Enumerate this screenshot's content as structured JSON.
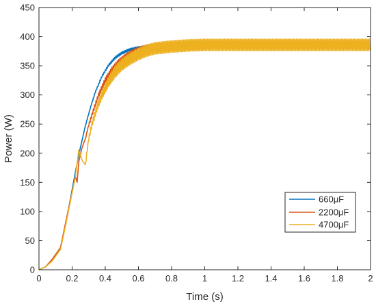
{
  "chart_data": {
    "type": "line",
    "title": "",
    "xlabel": "Time (s)",
    "ylabel": "Power (W)",
    "xlim": [
      0,
      2
    ],
    "ylim": [
      0,
      450
    ],
    "xticks": [
      "0",
      "0.2",
      "0.4",
      "0.6",
      "0.8",
      "1",
      "1.2",
      "1.4",
      "1.6",
      "1.8",
      "2"
    ],
    "yticks": [
      "0",
      "50",
      "100",
      "150",
      "200",
      "250",
      "300",
      "350",
      "400",
      "450"
    ],
    "grid": false,
    "legend_position": "right",
    "series": [
      {
        "name": "660μF",
        "color": "#0072BD",
        "ripple": 2,
        "x": [
          0,
          0.04,
          0.08,
          0.13,
          0.16,
          0.19,
          0.22,
          0.25,
          0.28,
          0.31,
          0.34,
          0.38,
          0.42,
          0.46,
          0.5,
          0.55,
          0.6,
          0.65,
          0.7
        ],
        "y": [
          0,
          5,
          18,
          38,
          78,
          122,
          168,
          210,
          247,
          278,
          305,
          332,
          351,
          364,
          372,
          378,
          381,
          383,
          384
        ]
      },
      {
        "name": "2200μF",
        "color": "#D95319",
        "ripple": 6,
        "x": [
          0,
          0.04,
          0.08,
          0.13,
          0.16,
          0.19,
          0.22,
          0.23,
          0.24,
          0.26,
          0.28,
          0.3,
          0.33,
          0.36,
          0.4,
          0.44,
          0.48,
          0.52,
          0.56,
          0.6,
          0.65,
          0.7,
          0.8,
          0.9,
          1.0
        ],
        "y": [
          0,
          5,
          18,
          38,
          80,
          120,
          160,
          150,
          185,
          210,
          225,
          248,
          275,
          300,
          325,
          342,
          355,
          364,
          371,
          376,
          380,
          382,
          384,
          385,
          385
        ]
      },
      {
        "name": "4700μF",
        "color": "#EDB120",
        "ripple": 10,
        "x": [
          0,
          0.04,
          0.08,
          0.13,
          0.16,
          0.19,
          0.22,
          0.24,
          0.26,
          0.28,
          0.3,
          0.32,
          0.35,
          0.38,
          0.42,
          0.46,
          0.5,
          0.55,
          0.6,
          0.65,
          0.7,
          0.8,
          0.9,
          1.0,
          1.2,
          1.5,
          2.0
        ],
        "y": [
          0,
          5,
          15,
          35,
          75,
          118,
          160,
          205,
          188,
          180,
          225,
          250,
          278,
          300,
          323,
          340,
          352,
          362,
          370,
          376,
          380,
          383,
          385,
          386,
          386,
          386,
          386
        ]
      }
    ]
  }
}
